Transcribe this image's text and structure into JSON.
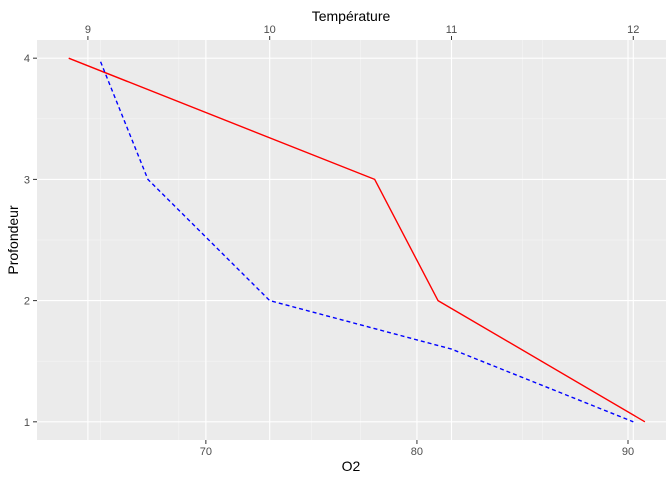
{
  "chart_data": {
    "type": "line",
    "xlabel": "O2",
    "ylabel": "Profondeur",
    "x2label": "Température",
    "xlim": [
      62.0,
      91.8
    ],
    "x_ticks": [
      70,
      80,
      90
    ],
    "x_minor": [
      65,
      75,
      85
    ],
    "x2lim": [
      8.72,
      12.18
    ],
    "x2_ticks": [
      9,
      10,
      11,
      12
    ],
    "x2_minor": [
      9.5,
      10.5,
      11.5
    ],
    "ylim": [
      0.85,
      4.15
    ],
    "y_ticks": [
      1,
      2,
      3,
      4
    ],
    "y_minor": [
      1.5,
      2.5,
      3.5
    ],
    "grid": true,
    "legend": "none",
    "series": [
      {
        "axis": "bottom",
        "color": "#ff0000",
        "dash": "solid",
        "points": [
          [
            63.5,
            4
          ],
          [
            78,
            3
          ],
          [
            81,
            2
          ],
          [
            90.8,
            1
          ]
        ]
      },
      {
        "axis": "top",
        "color": "#0000ff",
        "dash": "dashed",
        "points": [
          [
            9.07,
            3.97
          ],
          [
            9.33,
            3
          ],
          [
            10,
            2
          ],
          [
            11,
            1.6
          ],
          [
            12,
            1
          ]
        ]
      }
    ]
  }
}
